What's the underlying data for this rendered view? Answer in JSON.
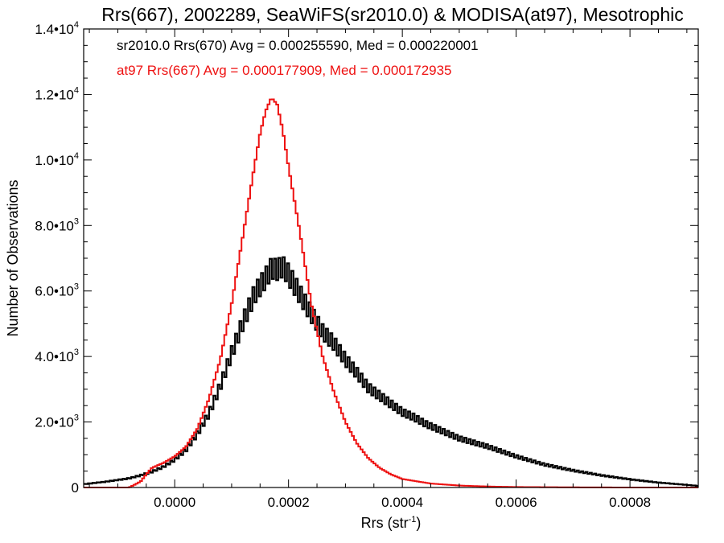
{
  "chart_data": {
    "type": "line",
    "title": "Rrs(667), 2002289, SeaWiFS(sr2010.0) & MODISA(at97), Mesotrophic",
    "xlabel": "Rrs (str",
    "xlabel_sup": "-1",
    "xlabel_end": ")",
    "ylabel": "Number of Observations",
    "xlim": [
      -0.00016,
      0.00092
    ],
    "ylim": [
      0,
      14000
    ],
    "x_ticks": [
      0.0,
      0.0002,
      0.0004,
      0.0006,
      0.0008
    ],
    "x_tick_labels": [
      "0.0000",
      "0.0002",
      "0.0004",
      "0.0006",
      "0.0008"
    ],
    "y_ticks": [
      0,
      2000,
      4000,
      6000,
      8000,
      10000,
      12000,
      14000
    ],
    "y_tick_labels": [
      {
        "base": "0",
        "exp": ""
      },
      {
        "base": "2.0•10",
        "exp": "3"
      },
      {
        "base": "4.0•10",
        "exp": "3"
      },
      {
        "base": "6.0•10",
        "exp": "3"
      },
      {
        "base": "8.0•10",
        "exp": "3"
      },
      {
        "base": "1.0•10",
        "exp": "4"
      },
      {
        "base": "1.2•10",
        "exp": "4"
      },
      {
        "base": "1.4•10",
        "exp": "4"
      }
    ],
    "annotations": [
      {
        "text": "sr2010.0 Rrs(670) Avg = 0.000255590, Med = 0.000220001",
        "color": "#000000"
      },
      {
        "text": "at97 Rrs(667) Avg = 0.000177909, Med = 0.000172935",
        "color": "#ee1111"
      }
    ],
    "series": [
      {
        "color": "#000000",
        "x": [
          -0.00016,
          -0.00012,
          -8e-05,
          -6e-05,
          -4e-05,
          -2e-05,
          0.0,
          2e-05,
          4e-05,
          6e-05,
          8e-05,
          0.0001,
          0.00012,
          0.00014,
          0.00016,
          0.00017,
          0.00018,
          0.00019,
          0.0002,
          0.00021,
          0.00022,
          0.00023,
          0.00024,
          0.00026,
          0.00028,
          0.0003,
          0.00032,
          0.00034,
          0.00036,
          0.00038,
          0.0004,
          0.00042,
          0.00044,
          0.00046,
          0.00048,
          0.0005,
          0.00055,
          0.0006,
          0.00065,
          0.0007,
          0.00075,
          0.0008,
          0.00085,
          0.0009,
          0.00092
        ],
        "y": [
          100,
          180,
          280,
          370,
          480,
          630,
          850,
          1150,
          1650,
          2250,
          3100,
          4100,
          5050,
          5900,
          6400,
          6700,
          6650,
          6750,
          6500,
          6200,
          5900,
          5600,
          5300,
          4750,
          4400,
          3900,
          3500,
          3050,
          2800,
          2550,
          2300,
          2150,
          1950,
          1800,
          1650,
          1500,
          1250,
          950,
          700,
          520,
          370,
          250,
          150,
          80,
          50
        ]
      },
      {
        "color": "#ee1111",
        "x": [
          -0.00016,
          -0.00012,
          -8e-05,
          -6e-05,
          -5e-05,
          -4e-05,
          -2e-05,
          0.0,
          2e-05,
          4e-05,
          6e-05,
          8e-05,
          0.0001,
          0.00012,
          0.00014,
          0.00015,
          0.00016,
          0.00017,
          0.00018,
          0.00019,
          0.0002,
          0.00022,
          0.00024,
          0.00026,
          0.00028,
          0.0003,
          0.00032,
          0.00034,
          0.00036,
          0.00038,
          0.0004,
          0.00045,
          0.0005,
          0.00055,
          0.0006,
          0.00065,
          0.0007,
          0.0008,
          0.00092
        ],
        "y": [
          0,
          0,
          0,
          180,
          400,
          600,
          750,
          950,
          1250,
          1800,
          2700,
          3900,
          5600,
          7700,
          9800,
          10800,
          11500,
          11900,
          11700,
          10900,
          9800,
          7800,
          5600,
          4000,
          2900,
          2000,
          1350,
          900,
          600,
          400,
          260,
          120,
          60,
          30,
          15,
          10,
          5,
          0,
          0
        ]
      }
    ]
  }
}
